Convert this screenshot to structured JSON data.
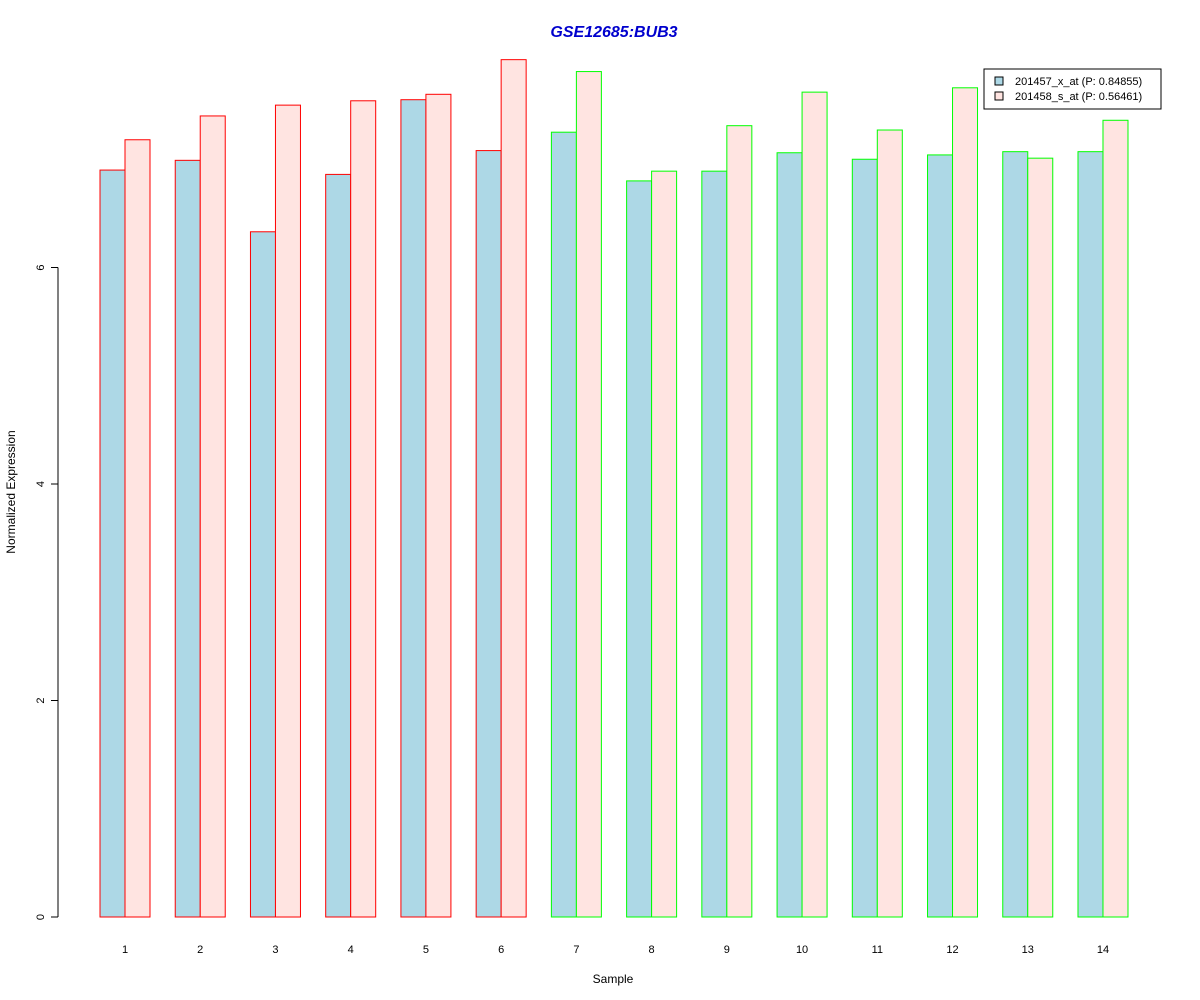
{
  "chart_data": {
    "type": "bar",
    "title": "GSE12685:BUB3",
    "xlabel": "Sample",
    "ylabel": "Normalized Expression",
    "categories": [
      "1",
      "2",
      "3",
      "4",
      "5",
      "6",
      "7",
      "8",
      "9",
      "10",
      "11",
      "12",
      "13",
      "14"
    ],
    "yticks": [
      0,
      2,
      4,
      6
    ],
    "ylim": [
      0,
      7.95
    ],
    "grid": false,
    "legend_position": "top-right",
    "series": [
      {
        "name": "201457_x_at (P: 0.84855)",
        "fill": "#add8e6",
        "values": [
          6.9,
          6.99,
          6.33,
          6.86,
          7.55,
          7.08,
          7.25,
          6.8,
          6.89,
          7.06,
          7.0,
          7.04,
          7.07,
          7.07
        ]
      },
      {
        "name": "201458_s_at (P: 0.56461)",
        "fill": "#ffe4e1",
        "values": [
          7.18,
          7.4,
          7.5,
          7.54,
          7.6,
          7.92,
          7.81,
          6.89,
          7.31,
          7.62,
          7.27,
          7.66,
          7.01,
          7.36
        ]
      }
    ],
    "group_border_colors": [
      "#ff0000",
      "#ff0000",
      "#ff0000",
      "#ff0000",
      "#ff0000",
      "#ff0000",
      "#00ff00",
      "#00ff00",
      "#00ff00",
      "#00ff00",
      "#00ff00",
      "#00ff00",
      "#00ff00",
      "#00ff00"
    ],
    "colors": {
      "title": "#0000cd",
      "axis": "#000000"
    }
  }
}
